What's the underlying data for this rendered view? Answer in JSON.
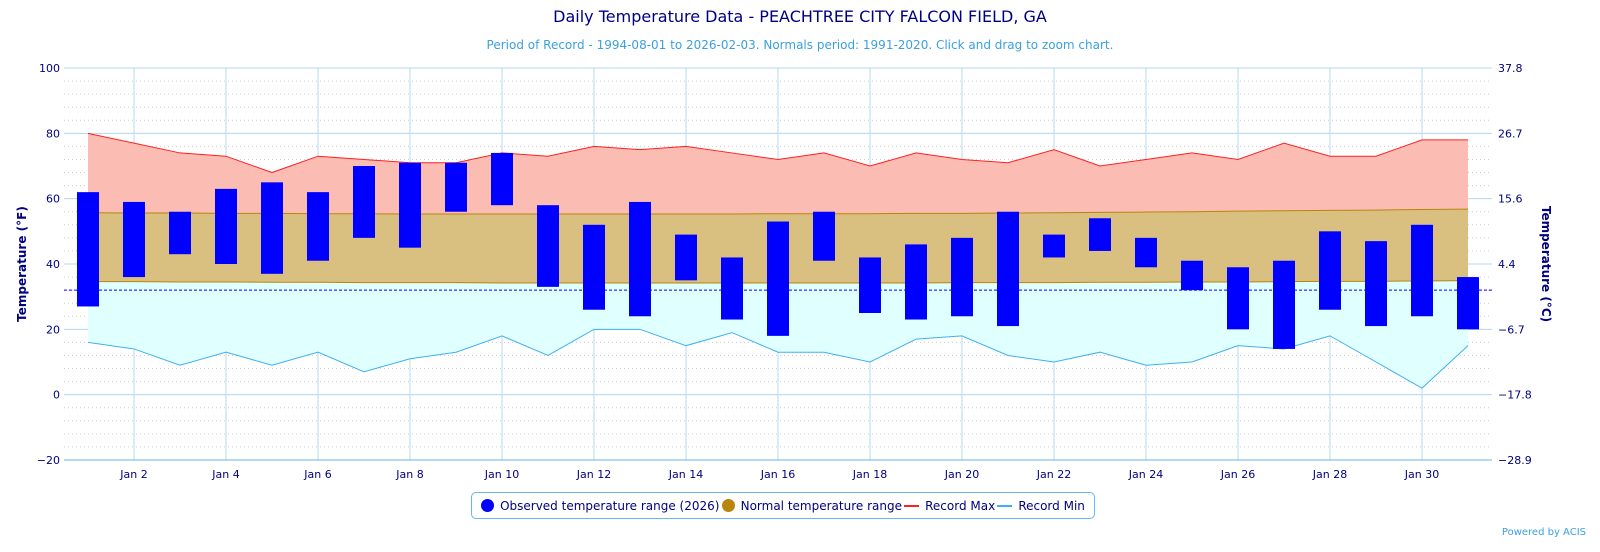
{
  "chart_data": {
    "type": "bar",
    "title": "Daily Temperature Data - PEACHTREE CITY FALCON FIELD, GA",
    "subtitle": "Period of Record - 1994-08-01 to 2026-02-03. Normals period: 1991-2020. Click and drag to zoom chart.",
    "ylabel": "Temperature (°F)",
    "ylabel_right": "Temperature (°C)",
    "ylim": [
      -20,
      100
    ],
    "yticks": [
      "100",
      "80",
      "60",
      "40",
      "20",
      "0",
      "−20"
    ],
    "yticks_right": [
      "37.8",
      "26.7",
      "15.6",
      "4.4",
      "−6.7",
      "−17.8",
      "−28.9"
    ],
    "xtick_labels": [
      "Jan 2",
      "Jan 4",
      "Jan 6",
      "Jan 8",
      "Jan 10",
      "Jan 12",
      "Jan 14",
      "Jan 16",
      "Jan 18",
      "Jan 20",
      "Jan 22",
      "Jan 24",
      "Jan 26",
      "Jan 28",
      "Jan 30"
    ],
    "days": [
      1,
      2,
      3,
      4,
      5,
      6,
      7,
      8,
      9,
      10,
      11,
      12,
      13,
      14,
      15,
      16,
      17,
      18,
      19,
      20,
      21,
      22,
      23,
      24,
      25,
      26,
      27,
      28,
      29,
      30,
      31
    ],
    "freezing_line": 32,
    "series": [
      {
        "name": "Observed temperature range (2026)",
        "color": "#0000ff",
        "high": [
          62,
          59,
          56,
          63,
          65,
          62,
          70,
          71,
          71,
          74,
          58,
          52,
          59,
          49,
          42,
          53,
          56,
          42,
          46,
          48,
          56,
          49,
          54,
          48,
          41,
          39,
          41,
          50,
          47,
          52,
          36
        ],
        "low": [
          27,
          36,
          43,
          40,
          37,
          41,
          48,
          45,
          56,
          58,
          33,
          26,
          24,
          35,
          23,
          18,
          41,
          25,
          23,
          24,
          21,
          42,
          44,
          39,
          32,
          20,
          14,
          26,
          21,
          24,
          20
        ]
      },
      {
        "name": "Normal temperature range",
        "color": "#b8860b",
        "high": [
          55.7,
          55.6,
          55.6,
          55.5,
          55.5,
          55.4,
          55.4,
          55.3,
          55.3,
          55.3,
          55.3,
          55.3,
          55.3,
          55.3,
          55.3,
          55.4,
          55.4,
          55.4,
          55.5,
          55.5,
          55.6,
          55.7,
          55.8,
          55.9,
          56.0,
          56.2,
          56.3,
          56.4,
          56.5,
          56.7,
          56.8
        ],
        "low": [
          34.6,
          34.6,
          34.5,
          34.5,
          34.4,
          34.4,
          34.3,
          34.3,
          34.3,
          34.2,
          34.2,
          34.2,
          34.2,
          34.2,
          34.2,
          34.2,
          34.2,
          34.2,
          34.2,
          34.3,
          34.3,
          34.3,
          34.4,
          34.4,
          34.5,
          34.5,
          34.6,
          34.7,
          34.7,
          34.8,
          34.9
        ]
      },
      {
        "name": "Record Max",
        "color": "#ff2020",
        "values": [
          80,
          77,
          74,
          73,
          68,
          73,
          72,
          71,
          71,
          74,
          73,
          76,
          75,
          76,
          74,
          72,
          74,
          70,
          74,
          72,
          71,
          75,
          70,
          72,
          74,
          72,
          77,
          73,
          73,
          78,
          78
        ]
      },
      {
        "name": "Record Min",
        "color": "#40b0f0",
        "values": [
          16,
          14,
          9,
          13,
          9,
          13,
          7,
          11,
          13,
          18,
          12,
          20,
          20,
          15,
          19,
          13,
          13,
          10,
          17,
          18,
          12,
          10,
          13,
          9,
          10,
          15,
          14,
          18,
          10,
          2,
          15
        ]
      }
    ],
    "legend_position": "bottom-center",
    "credit": "Powered by ACIS"
  }
}
